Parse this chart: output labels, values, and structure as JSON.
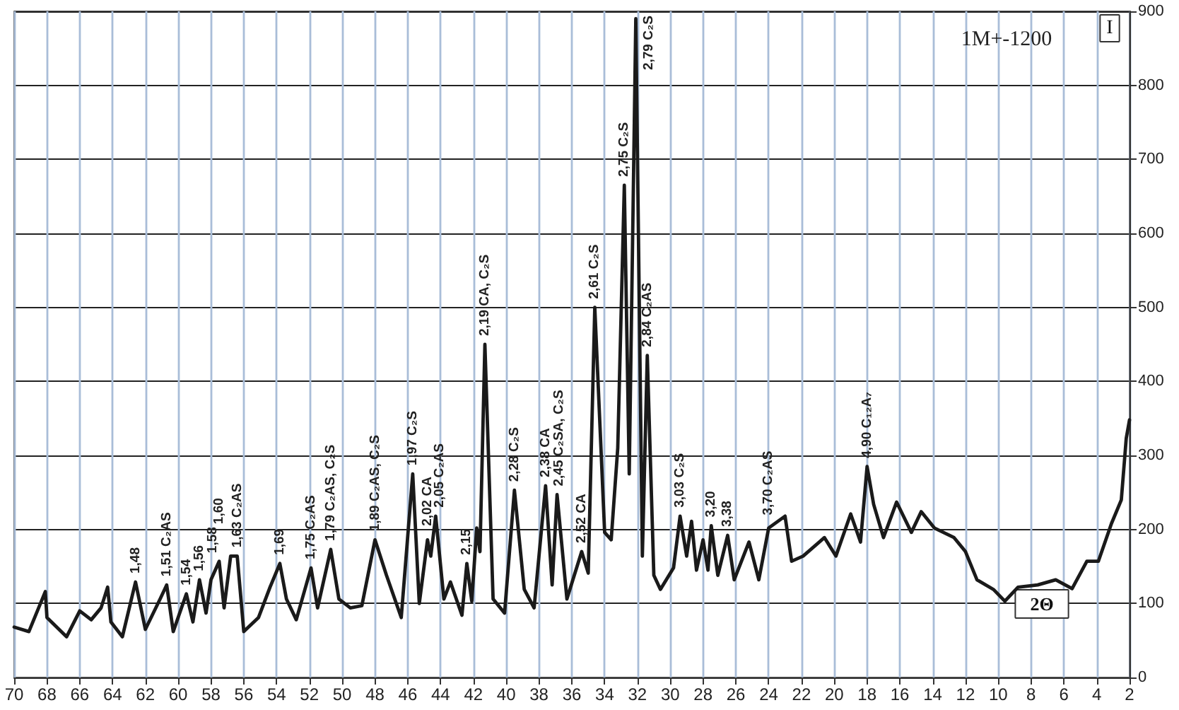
{
  "chart_data": {
    "type": "line",
    "xlabel": "2Θ",
    "ylabel": "I",
    "xlim": [
      70,
      2
    ],
    "xticks": [
      70,
      68,
      66,
      64,
      62,
      60,
      58,
      56,
      54,
      52,
      50,
      48,
      46,
      44,
      42,
      40,
      38,
      36,
      34,
      32,
      30,
      28,
      26,
      24,
      22,
      20,
      18,
      16,
      14,
      12,
      10,
      8,
      6,
      4,
      2
    ],
    "ylim": [
      0,
      900
    ],
    "yticks": [
      0,
      100,
      200,
      300,
      400,
      500,
      600,
      700,
      800,
      900
    ],
    "grid": true,
    "marker": "none",
    "line_style": "solid",
    "series": [
      {
        "color": "#1a1a1a",
        "x": [
          70,
          69.1,
          68.1,
          68,
          66.8,
          66,
          65.3,
          64.7,
          64.3,
          64.1,
          63.4,
          62.6,
          62,
          61.1,
          60.7,
          60.3,
          59.5,
          59.1,
          58.7,
          58.3,
          58,
          57.5,
          57.2,
          56.8,
          56.4,
          56,
          55.1,
          54.4,
          53.8,
          53.4,
          52.8,
          51.9,
          51.5,
          50.7,
          50.2,
          49.5,
          48.8,
          48,
          47.3,
          46.4,
          45.7,
          45.3,
          44.8,
          44.6,
          44.3,
          43.8,
          43.4,
          42.7,
          42.4,
          42.1,
          41.8,
          41.6,
          41.3,
          40.8,
          40.1,
          39.5,
          38.9,
          38.3,
          37.6,
          37.2,
          36.9,
          36.3,
          35.4,
          35,
          34.6,
          34,
          33.6,
          33.2,
          32.8,
          32.5,
          32.1,
          31.7,
          31.4,
          31,
          30.6,
          29.8,
          29.4,
          29,
          28.7,
          28.4,
          28,
          27.7,
          27.5,
          27.1,
          26.5,
          26.1,
          25.2,
          24.6,
          24,
          23,
          22.6,
          21.9,
          20.6,
          19.9,
          19,
          18.4,
          18,
          17.6,
          17,
          16.2,
          15.3,
          14.7,
          13.9,
          12.7,
          12,
          11.3,
          10.3,
          9.6,
          8.8,
          7.6,
          6.5,
          5.5,
          4.6,
          3.9,
          3.1,
          2.5,
          2.2,
          2
        ],
        "values": [
          68,
          62,
          116,
          81,
          55,
          90,
          78,
          94,
          122,
          75,
          55,
          129,
          65,
          106,
          125,
          62,
          113,
          75,
          132,
          87,
          132,
          157,
          94,
          164,
          164,
          62,
          81,
          122,
          154,
          106,
          78,
          148,
          94,
          173,
          106,
          94,
          97,
          186,
          138,
          81,
          275,
          100,
          186,
          164,
          218,
          106,
          129,
          84,
          154,
          103,
          202,
          170,
          450,
          106,
          87,
          253,
          119,
          94,
          259,
          125,
          247,
          106,
          170,
          141,
          500,
          196,
          186,
          310,
          665,
          275,
          890,
          164,
          435,
          138,
          119,
          148,
          218,
          164,
          211,
          145,
          186,
          145,
          205,
          138,
          192,
          132,
          183,
          132,
          202,
          218,
          157,
          164,
          189,
          164,
          221,
          183,
          285,
          234,
          189,
          237,
          196,
          224,
          202,
          189,
          170,
          132,
          119,
          103,
          122,
          125,
          132,
          120,
          157,
          157,
          208,
          240,
          323,
          348
        ]
      }
    ],
    "annotations": [
      "1M+-1200",
      {
        "text": "1,48",
        "x": 62.6,
        "y": 129
      },
      {
        "text": "1,51 C₂AS",
        "x": 60.7,
        "y": 125
      },
      {
        "text": "1,54",
        "x": 59.5,
        "y": 113
      },
      {
        "text": "1,56",
        "x": 58.7,
        "y": 132
      },
      {
        "text": "1,58",
        "x": 58,
        "y": 132
      },
      {
        "text": "1,60",
        "x": 57.5,
        "y": 157
      },
      {
        "text": "1,63 C₂AS",
        "x": 56.4,
        "y": 164
      },
      {
        "text": "1,69",
        "x": 53.8,
        "y": 154
      },
      {
        "text": "1,75 C₂AS",
        "x": 51.9,
        "y": 148
      },
      {
        "text": "1,79 C₂AS, C₂S",
        "x": 50.7,
        "y": 173
      },
      {
        "text": "1,89 C₂AS, C₂S",
        "x": 48,
        "y": 186
      },
      {
        "text": "1,97 C₂S",
        "x": 45.7,
        "y": 275
      },
      {
        "text": "2,02 CA",
        "x": 44.8,
        "y": 186
      },
      {
        "text": "2,05 C₂AS",
        "x": 44.3,
        "y": 218
      },
      {
        "text": "2,15",
        "x": 42.4,
        "y": 154
      },
      {
        "text": "2,19 CA, C₂S",
        "x": 41.3,
        "y": 450
      },
      {
        "text": "2,28 C₂S",
        "x": 39.5,
        "y": 253
      },
      {
        "text": "2,38 CA",
        "x": 37.6,
        "y": 259
      },
      {
        "text": "2,45 C₂SA, C₂S",
        "x": 36.9,
        "y": 247
      },
      {
        "text": "2,52 CA",
        "x": 35.4,
        "y": 170
      },
      {
        "text": "2,61 C₂S",
        "x": 34.6,
        "y": 500
      },
      {
        "text": "2,75 C₂S",
        "x": 32.8,
        "y": 665
      },
      {
        "text": "2,79 C₂S",
        "x": 32.1,
        "y": 890
      },
      {
        "text": "2,84 C₂AS",
        "x": 31.4,
        "y": 435
      },
      {
        "text": "3,03 C₂S",
        "x": 29.4,
        "y": 218
      },
      {
        "text": "3,20",
        "x": 27.5,
        "y": 205
      },
      {
        "text": "3,38",
        "x": 26.5,
        "y": 192
      },
      {
        "text": "3,70 C₂AS",
        "x": 24,
        "y": 202
      },
      {
        "text": "4,90 C₁₂A₇",
        "x": 18,
        "y": 285
      }
    ]
  }
}
